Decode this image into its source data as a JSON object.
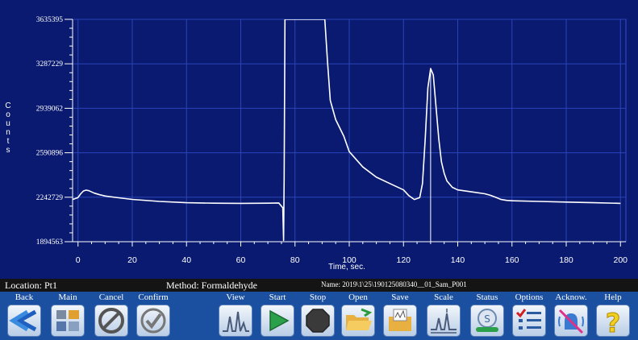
{
  "chart_data": {
    "type": "line",
    "title": "",
    "xlabel": "Time, sec.",
    "ylabel": "Counts",
    "xlim": [
      -2,
      202
    ],
    "ylim": [
      1894563,
      3635395
    ],
    "x_ticks": [
      0,
      20,
      40,
      60,
      80,
      100,
      120,
      140,
      160,
      180,
      200
    ],
    "y_ticks": [
      1894563,
      2242729,
      2590896,
      2939062,
      3287229,
      3635395
    ],
    "y_tick_labels": [
      "1894563",
      "2242729",
      "2590896",
      "2939062",
      "3287229",
      "3635395"
    ],
    "grid": true,
    "series": [
      {
        "name": "",
        "x": [
          -2,
          0,
          1,
          2,
          3,
          4,
          6,
          8,
          10,
          15,
          20,
          30,
          40,
          50,
          60,
          70,
          74,
          75.5,
          75.8,
          76,
          76.3,
          91,
          92,
          93,
          95,
          98,
          100,
          105,
          110,
          115,
          120,
          122,
          124,
          126,
          127,
          128,
          129,
          130,
          131,
          132,
          133,
          134,
          135,
          136,
          138,
          140,
          145,
          150,
          152,
          154,
          156,
          158,
          160,
          170,
          180,
          190,
          200
        ],
        "y": [
          2225000,
          2240000,
          2270000,
          2292000,
          2298000,
          2294000,
          2275000,
          2262000,
          2252000,
          2238000,
          2226000,
          2210000,
          2200000,
          2196000,
          2195000,
          2196000,
          2198000,
          2160000,
          1905000,
          2400000,
          3635395,
          3635395,
          3300000,
          3000000,
          2850000,
          2720000,
          2600000,
          2480000,
          2400000,
          2350000,
          2300000,
          2255000,
          2225000,
          2240000,
          2350000,
          2700000,
          3100000,
          3250000,
          3200000,
          2950000,
          2700000,
          2520000,
          2430000,
          2370000,
          2320000,
          2300000,
          2285000,
          2270000,
          2258000,
          2242000,
          2225000,
          2218000,
          2215000,
          2210000,
          2205000,
          2200000,
          2195000
        ]
      }
    ],
    "marker_x": 130
  },
  "status": {
    "location": "Location: Pt1",
    "method": "Method: Formaldehyde",
    "name": "Name: 2019\\1\\25\\190125080340__01_Sam_P001"
  },
  "toolbar": {
    "buttons": [
      {
        "id": "back",
        "label": "Back",
        "icon": "back-arrow-icon"
      },
      {
        "id": "main",
        "label": "Main",
        "icon": "main-menu-icon"
      },
      {
        "id": "cancel",
        "label": "Cancel",
        "icon": "cancel-icon"
      },
      {
        "id": "confirm",
        "label": "Confirm",
        "icon": "confirm-check-icon"
      },
      {
        "id": "view",
        "label": "View",
        "icon": "view-chromatogram-icon"
      },
      {
        "id": "start",
        "label": "Start",
        "icon": "play-icon"
      },
      {
        "id": "stop",
        "label": "Stop",
        "icon": "stop-octagon-icon"
      },
      {
        "id": "open",
        "label": "Open",
        "icon": "open-folder-icon"
      },
      {
        "id": "save",
        "label": "Save",
        "icon": "save-folder-icon"
      },
      {
        "id": "scale",
        "label": "Scale",
        "icon": "scale-icon"
      },
      {
        "id": "status",
        "label": "Status",
        "icon": "status-gauge-icon"
      },
      {
        "id": "options",
        "label": "Options",
        "icon": "options-list-icon"
      },
      {
        "id": "acknow",
        "label": "Acknow.",
        "icon": "acknowledge-alarm-icon"
      },
      {
        "id": "help",
        "label": "Help",
        "icon": "help-question-icon"
      }
    ]
  }
}
